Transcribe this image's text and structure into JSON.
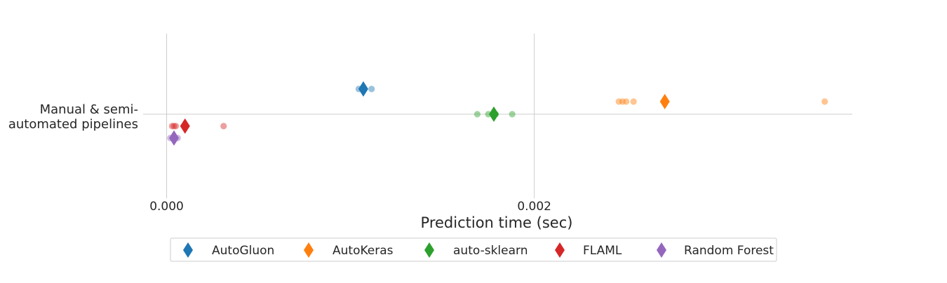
{
  "chart_data": {
    "type": "scatter",
    "title": "",
    "xlabel": "Prediction time (sec)",
    "ylabel": "",
    "xlim": [
      -0.000128,
      0.00373
    ],
    "x_ticks": [
      {
        "value": 0.0,
        "label": "0.000"
      },
      {
        "value": 0.002,
        "label": "0.002"
      }
    ],
    "category_lines": [
      "Manual & semi-",
      "automated pipelines"
    ],
    "grid": true,
    "legend_position": "bottom-center",
    "series": [
      {
        "name": "AutoGluon",
        "color": "#1f77b4",
        "points": [
          0.001045,
          0.001065,
          0.001075,
          0.001115
        ],
        "mean": 0.00107
      },
      {
        "name": "AutoKeras",
        "color": "#ff7f0e",
        "points": [
          0.00246,
          0.00248,
          0.0025,
          0.00254,
          0.00358
        ],
        "mean": 0.00271
      },
      {
        "name": "auto-sklearn",
        "color": "#2ca02c",
        "points": [
          0.00169,
          0.00175,
          0.00179,
          0.00188
        ],
        "mean": 0.00178
      },
      {
        "name": "FLAML",
        "color": "#d62728",
        "points": [
          3e-05,
          4e-05,
          5e-05,
          0.00031
        ],
        "mean": 0.0001
      },
      {
        "name": "Random Forest",
        "color": "#9467bd",
        "points": [
          2e-05,
          4e-05,
          6e-05
        ],
        "mean": 4e-05
      }
    ]
  }
}
